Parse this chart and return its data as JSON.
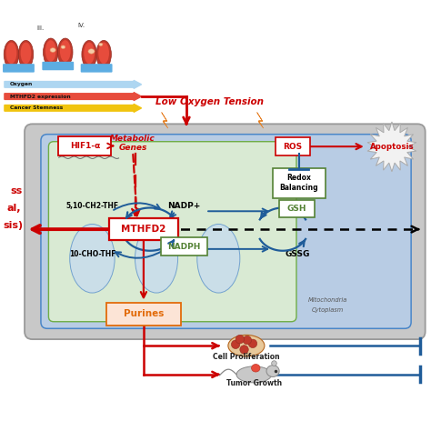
{
  "bg_color": "#ffffff",
  "cell_bg": "#c8c8c8",
  "mito_bg": "#b8cce4",
  "cyto_bg": "#d9ead3",
  "red": "#cc0000",
  "blue": "#1f5c99",
  "green_box": "#548235",
  "labels": {
    "low_oxygen": "Low Oxygen Tension",
    "hif1a": "HIF1-α",
    "metabolic_genes": "Metabolic\nGenes",
    "mthfd2": "MTHFD2",
    "nadp": "NADP+",
    "nadph": "NADPH",
    "gsh": "GSH",
    "gssg": "GSSG",
    "ros": "ROS",
    "apoptosis": "Apoptosis",
    "redox": "Redox\nBalancing",
    "thf1": "5,10-CH2-THF",
    "thf2": "10-CHO-THF",
    "purines": "Purines",
    "cell_prolif": "Cell Proliferation",
    "tumor": "Tumor Growth",
    "mito_label": "Mitochondria",
    "cyto_label": "Cytoplasm",
    "oxygen_label": "Oxygen",
    "mthfd2_expr": "MTHFD2 expression",
    "cancer_stem": "Cancer Stemness",
    "roman3": "III.",
    "roman4": "IV.",
    "left_text": "ss\nal,\nsis)"
  }
}
